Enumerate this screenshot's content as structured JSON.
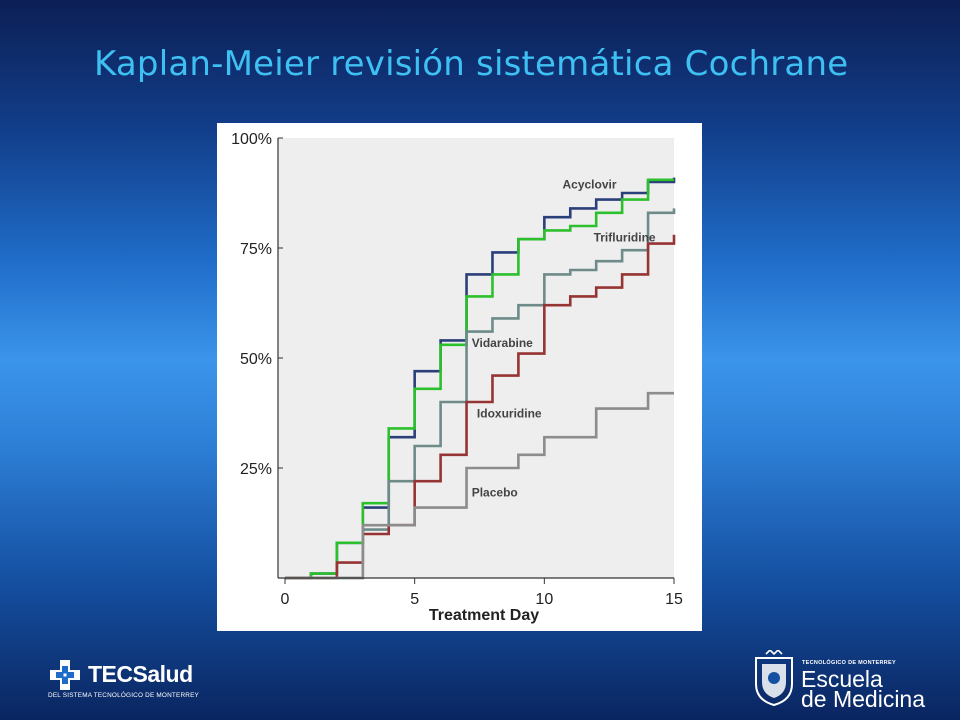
{
  "slide": {
    "title": "Kaplan-Meier revisión sistemática Cochrane"
  },
  "logos": {
    "left": {
      "wordmark_bold": "TEC",
      "wordmark_rest": "Salud",
      "subline": "DEL SISTEMA TECNOLÓGICO DE MONTERREY"
    },
    "right": {
      "tagline": "TECNOLÓGICO DE MONTERREY",
      "name_line1": "Escuela",
      "name_line2": "de Medicina"
    }
  },
  "colors": {
    "plot_background": "#eeeeee",
    "axis": "#333333"
  },
  "chart_data": {
    "type": "line",
    "step": true,
    "xlabel": "Treatment Day",
    "ylabel": "",
    "xlim": [
      0,
      15
    ],
    "ylim": [
      0,
      100
    ],
    "xticks": [
      0,
      5,
      10,
      15
    ],
    "yticks": [
      25,
      50,
      75,
      100
    ],
    "ytick_labels": [
      "25%",
      "50%",
      "75%",
      "100%"
    ],
    "grid": false,
    "legend": "inline labels",
    "series": [
      {
        "name": "Acyclovir",
        "color": "#2b3f7a",
        "label_at": [
          10.7,
          88.5
        ],
        "points": [
          [
            0,
            0
          ],
          [
            1,
            1
          ],
          [
            2,
            8
          ],
          [
            3,
            16
          ],
          [
            4,
            32
          ],
          [
            5,
            47
          ],
          [
            6,
            54
          ],
          [
            7,
            69
          ],
          [
            8,
            74
          ],
          [
            9,
            77
          ],
          [
            10,
            82
          ],
          [
            11,
            84
          ],
          [
            12,
            86
          ],
          [
            13,
            87.5
          ],
          [
            14,
            90
          ],
          [
            15,
            91
          ]
        ]
      },
      {
        "name": "Trifluridine",
        "color": "#2dc02d",
        "label_at": [
          11.9,
          76.5
        ],
        "points": [
          [
            0,
            0
          ],
          [
            1,
            1
          ],
          [
            2,
            8
          ],
          [
            3,
            17
          ],
          [
            4,
            34
          ],
          [
            5,
            43
          ],
          [
            6,
            53
          ],
          [
            7,
            64
          ],
          [
            8,
            69
          ],
          [
            9,
            77
          ],
          [
            10,
            79
          ],
          [
            11,
            80
          ],
          [
            12,
            83
          ],
          [
            13,
            86
          ],
          [
            14,
            90.5
          ],
          [
            15,
            90.5
          ]
        ]
      },
      {
        "name": "Vidarabine",
        "color": "#6e8b8a",
        "label_at": [
          7.2,
          52.5
        ],
        "points": [
          [
            0,
            0
          ],
          [
            3,
            11
          ],
          [
            4,
            22
          ],
          [
            5,
            30
          ],
          [
            6,
            40
          ],
          [
            7,
            56
          ],
          [
            8,
            59
          ],
          [
            9,
            62
          ],
          [
            10,
            69
          ],
          [
            11,
            70
          ],
          [
            12,
            72
          ],
          [
            13,
            74.5
          ],
          [
            14,
            83
          ],
          [
            15,
            84
          ]
        ]
      },
      {
        "name": "Idoxuridine",
        "color": "#963434",
        "label_at": [
          7.4,
          36.5
        ],
        "points": [
          [
            0,
            0
          ],
          [
            2,
            3.5
          ],
          [
            3,
            10
          ],
          [
            4,
            12
          ],
          [
            5,
            22
          ],
          [
            6,
            28
          ],
          [
            7,
            40
          ],
          [
            8,
            46
          ],
          [
            9,
            51
          ],
          [
            10,
            62
          ],
          [
            11,
            64
          ],
          [
            12,
            66
          ],
          [
            13,
            69
          ],
          [
            14,
            76
          ],
          [
            15,
            78
          ]
        ]
      },
      {
        "name": "Placebo",
        "color": "#8c8c8c",
        "label_at": [
          7.2,
          18.5
        ],
        "points": [
          [
            0,
            0
          ],
          [
            3,
            0
          ],
          [
            3,
            12
          ],
          [
            5,
            16
          ],
          [
            7,
            25
          ],
          [
            9,
            28
          ],
          [
            10,
            32
          ],
          [
            12,
            38.5
          ],
          [
            14,
            42
          ],
          [
            15,
            42
          ]
        ]
      }
    ]
  }
}
